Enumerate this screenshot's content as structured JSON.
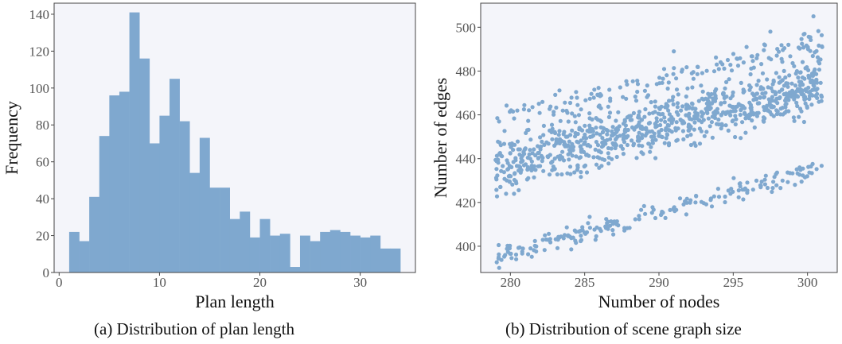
{
  "captions": {
    "a": "(a) Distribution of plan length",
    "b": "(b) Distribution of scene graph size"
  },
  "colors": {
    "bar": "#7fa8cf",
    "point": "#7fa8cf",
    "plot_bg": "#f4f5fa",
    "frame": "#444444"
  },
  "chart_data": [
    {
      "type": "bar",
      "title": "",
      "xlabel": "Plan length",
      "ylabel": "Frequency",
      "xlim": [
        -0.5,
        35.5
      ],
      "ylim": [
        0,
        146
      ],
      "xticks": [
        0,
        10,
        20,
        30
      ],
      "yticks": [
        0,
        20,
        40,
        60,
        80,
        100,
        120,
        140
      ],
      "bin_edges": [
        1,
        2,
        3,
        4,
        5,
        6,
        7,
        8,
        9,
        10,
        11,
        12,
        13,
        14,
        15,
        16,
        17,
        18,
        19,
        20,
        21,
        22,
        23,
        24,
        25,
        26,
        27,
        28,
        29,
        30,
        31,
        32,
        33,
        34
      ],
      "values": [
        22,
        17,
        41,
        74,
        96,
        98,
        141,
        116,
        70,
        85,
        105,
        82,
        54,
        73,
        46,
        46,
        29,
        33,
        19,
        29,
        20,
        21,
        3,
        20,
        17,
        22,
        23,
        22,
        20,
        19,
        20,
        13,
        13
      ],
      "grid": false
    },
    {
      "type": "scatter",
      "title": "",
      "xlabel": "Number of nodes",
      "ylabel": "Number of edges",
      "xlim": [
        278,
        302
      ],
      "ylim": [
        388,
        511
      ],
      "xticks": [
        280,
        285,
        290,
        295,
        300
      ],
      "yticks": [
        400,
        420,
        440,
        460,
        480,
        500
      ],
      "clusters": [
        {
          "x_range": [
            279,
            301
          ],
          "y_at_start": 436,
          "y_at_end": 475,
          "spread": 14,
          "count": 880
        },
        {
          "x_range": [
            279,
            301
          ],
          "y_at_start": 458,
          "y_at_end": 494,
          "spread": 7,
          "count": 140
        },
        {
          "x_range": [
            279,
            301
          ],
          "y_at_start": 395,
          "y_at_end": 436,
          "spread": 5,
          "count": 200
        }
      ],
      "outliers": [
        [
          300.4,
          505
        ],
        [
          297.5,
          498
        ],
        [
          299.8,
          497
        ],
        [
          291.0,
          489
        ]
      ],
      "grid": false
    }
  ]
}
